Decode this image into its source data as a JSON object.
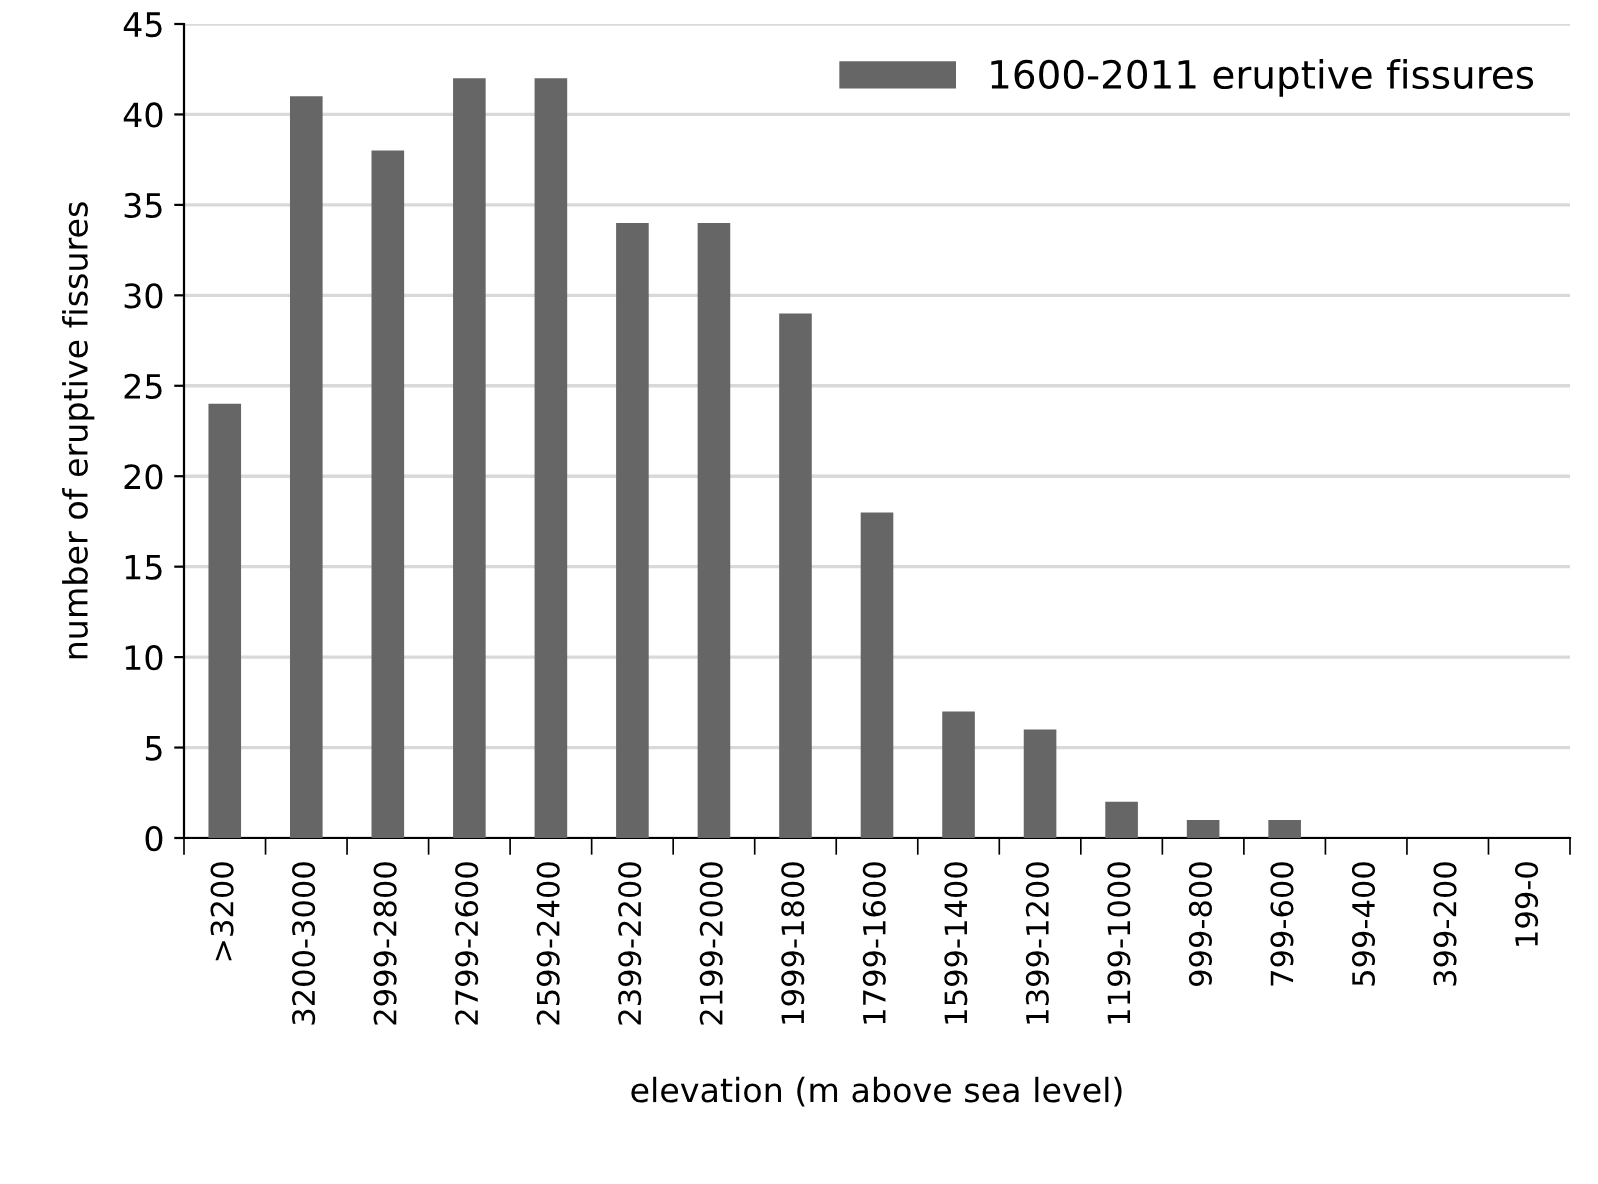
{
  "chart_data": {
    "type": "bar",
    "xlabel": "elevation (m above sea level)",
    "ylabel": "number of eruptive fissures",
    "categories": [
      ">3200",
      "3200-3000",
      "2999-2800",
      "2799-2600",
      "2599-2400",
      "2399-2200",
      "2199-2000",
      "1999-1800",
      "1799-1600",
      "1599-1400",
      "1399-1200",
      "1199-1000",
      "999-800",
      "799-600",
      "599-400",
      "399-200",
      "199-0"
    ],
    "series": [
      {
        "name": "1600-2011 eruptive fissures",
        "color": "#666666",
        "values": [
          24,
          41,
          38,
          42,
          42,
          34,
          34,
          29,
          18,
          7,
          6,
          2,
          1,
          1,
          0,
          0,
          0
        ]
      }
    ],
    "ylim": [
      0,
      45
    ],
    "yticks": [
      0,
      5,
      10,
      15,
      20,
      25,
      30,
      35,
      40,
      45
    ],
    "grid": "y",
    "legend": "top right"
  }
}
